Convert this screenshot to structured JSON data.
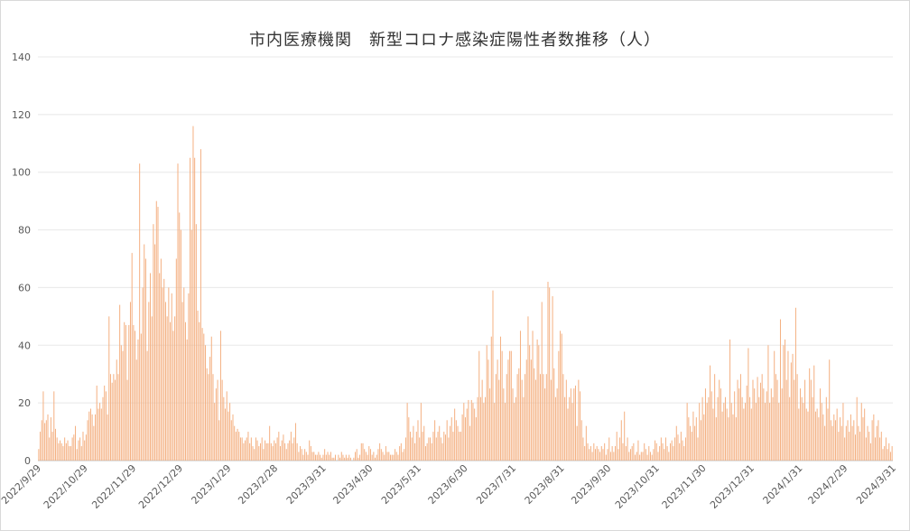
{
  "chart_data": {
    "type": "bar",
    "title": "市内医療機関　新型コロナ感染症陽性者数推移（人）",
    "xlabel": "",
    "ylabel": "",
    "ylim": [
      0,
      140
    ],
    "yticks": [
      0,
      20,
      40,
      60,
      80,
      100,
      120,
      140
    ],
    "grid": true,
    "bar_color": "#f4b183",
    "x_start": "2022/9/29",
    "x_end": "2024/3/31",
    "x_tick_labels": [
      "2022/9/29",
      "2022/10/29",
      "2022/11/29",
      "2022/12/29",
      "2023/1/29",
      "2023/2/28",
      "2023/3/31",
      "2023/4/30",
      "2023/5/31",
      "2023/6/30",
      "2023/7/31",
      "2023/8/31",
      "2023/9/30",
      "2023/10/31",
      "2023/11/30",
      "2023/12/31",
      "2024/1/31",
      "2024/2/29",
      "2024/3/31"
    ],
    "series": [
      {
        "values": [
          4,
          10,
          14,
          24,
          13,
          14,
          16,
          8,
          15,
          10,
          24,
          11,
          8,
          6,
          7,
          6,
          5,
          8,
          6,
          7,
          5,
          5,
          8,
          9,
          12,
          4,
          7,
          8,
          5,
          10,
          7,
          9,
          14,
          17,
          18,
          16,
          12,
          16,
          26,
          18,
          20,
          18,
          22,
          26,
          24,
          16,
          50,
          30,
          27,
          30,
          28,
          35,
          30,
          54,
          40,
          38,
          48,
          47,
          28,
          47,
          55,
          72,
          47,
          45,
          35,
          42,
          103,
          44,
          60,
          75,
          70,
          38,
          55,
          65,
          50,
          82,
          75,
          90,
          88,
          65,
          70,
          60,
          63,
          55,
          50,
          60,
          48,
          58,
          45,
          50,
          70,
          103,
          86,
          80,
          55,
          60,
          48,
          42,
          58,
          105,
          80,
          116,
          105,
          82,
          52,
          48,
          108,
          46,
          44,
          40,
          32,
          30,
          36,
          43,
          30,
          20,
          25,
          28,
          14,
          45,
          28,
          22,
          18,
          24,
          17,
          20,
          14,
          16,
          12,
          10,
          11,
          10,
          8,
          8,
          6,
          7,
          8,
          10,
          6,
          8,
          5,
          4,
          8,
          7,
          5,
          6,
          8,
          4,
          7,
          6,
          6,
          12,
          6,
          5,
          7,
          6,
          8,
          10,
          5,
          7,
          9,
          6,
          4,
          6,
          7,
          10,
          6,
          8,
          13,
          6,
          3,
          5,
          4,
          2,
          4,
          3,
          2,
          7,
          5,
          3,
          3,
          2,
          2,
          3,
          2,
          1,
          2,
          4,
          2,
          3,
          2,
          3,
          1,
          1,
          2,
          0,
          2,
          1,
          3,
          2,
          1,
          2,
          1,
          2,
          1,
          0,
          1,
          3,
          4,
          1,
          2,
          6,
          6,
          4,
          3,
          2,
          5,
          4,
          2,
          3,
          1,
          2,
          4,
          6,
          4,
          3,
          2,
          5,
          3,
          3,
          2,
          2,
          2,
          4,
          3,
          2,
          5,
          6,
          3,
          4,
          8,
          20,
          15,
          10,
          8,
          12,
          6,
          10,
          14,
          8,
          20,
          10,
          12,
          5,
          6,
          8,
          8,
          6,
          10,
          14,
          8,
          10,
          12,
          8,
          6,
          10,
          9,
          14,
          8,
          12,
          15,
          10,
          18,
          14,
          12,
          10,
          10,
          16,
          20,
          15,
          18,
          21,
          12,
          21,
          20,
          18,
          15,
          22,
          38,
          22,
          28,
          20,
          22,
          40,
          35,
          25,
          43,
          59,
          20,
          30,
          35,
          28,
          43,
          38,
          25,
          20,
          30,
          35,
          38,
          38,
          25,
          20,
          22,
          30,
          32,
          45,
          28,
          22,
          30,
          35,
          50,
          40,
          35,
          45,
          32,
          28,
          42,
          40,
          30,
          55,
          30,
          25,
          30,
          62,
          60,
          28,
          57,
          32,
          22,
          25,
          38,
          45,
          44,
          30,
          22,
          28,
          18,
          22,
          25,
          20,
          25,
          26,
          12,
          28,
          24,
          14,
          8,
          5,
          12,
          6,
          4,
          5,
          3,
          6,
          4,
          5,
          4,
          3,
          5,
          4,
          6,
          2,
          4,
          8,
          3,
          5,
          3,
          5,
          10,
          4,
          8,
          14,
          6,
          17,
          5,
          8,
          3,
          4,
          5,
          6,
          2,
          3,
          7,
          2,
          3,
          3,
          6,
          4,
          2,
          5,
          3,
          2,
          4,
          7,
          6,
          3,
          5,
          8,
          6,
          4,
          8,
          5,
          3,
          6,
          7,
          5,
          8,
          12,
          9,
          6,
          10,
          7,
          5,
          8,
          20,
          15,
          12,
          10,
          17,
          12,
          15,
          8,
          20,
          14,
          22,
          16,
          25,
          20,
          22,
          33,
          24,
          18,
          30,
          15,
          22,
          28,
          25,
          17,
          20,
          22,
          18,
          15,
          42,
          20,
          16,
          24,
          15,
          28,
          25,
          30,
          22,
          18,
          20,
          26,
          39,
          22,
          18,
          28,
          25,
          20,
          29,
          22,
          27,
          30,
          25,
          20,
          24,
          40,
          20,
          25,
          22,
          38,
          30,
          28,
          20,
          49,
          25,
          40,
          42,
          28,
          38,
          22,
          34,
          37,
          28,
          53,
          30,
          18,
          25,
          22,
          20,
          28,
          18,
          17,
          32,
          28,
          22,
          33,
          17,
          18,
          15,
          25,
          20,
          16,
          12,
          22,
          18,
          35,
          14,
          12,
          16,
          14,
          18,
          10,
          15,
          12,
          20,
          8,
          12,
          14,
          10,
          16,
          12,
          14,
          9,
          22,
          12,
          10,
          20,
          15,
          18,
          8,
          12,
          10,
          6,
          14,
          16,
          8,
          12,
          14,
          8,
          10,
          4,
          5,
          8,
          4,
          6,
          3,
          5
        ]
      }
    ]
  }
}
